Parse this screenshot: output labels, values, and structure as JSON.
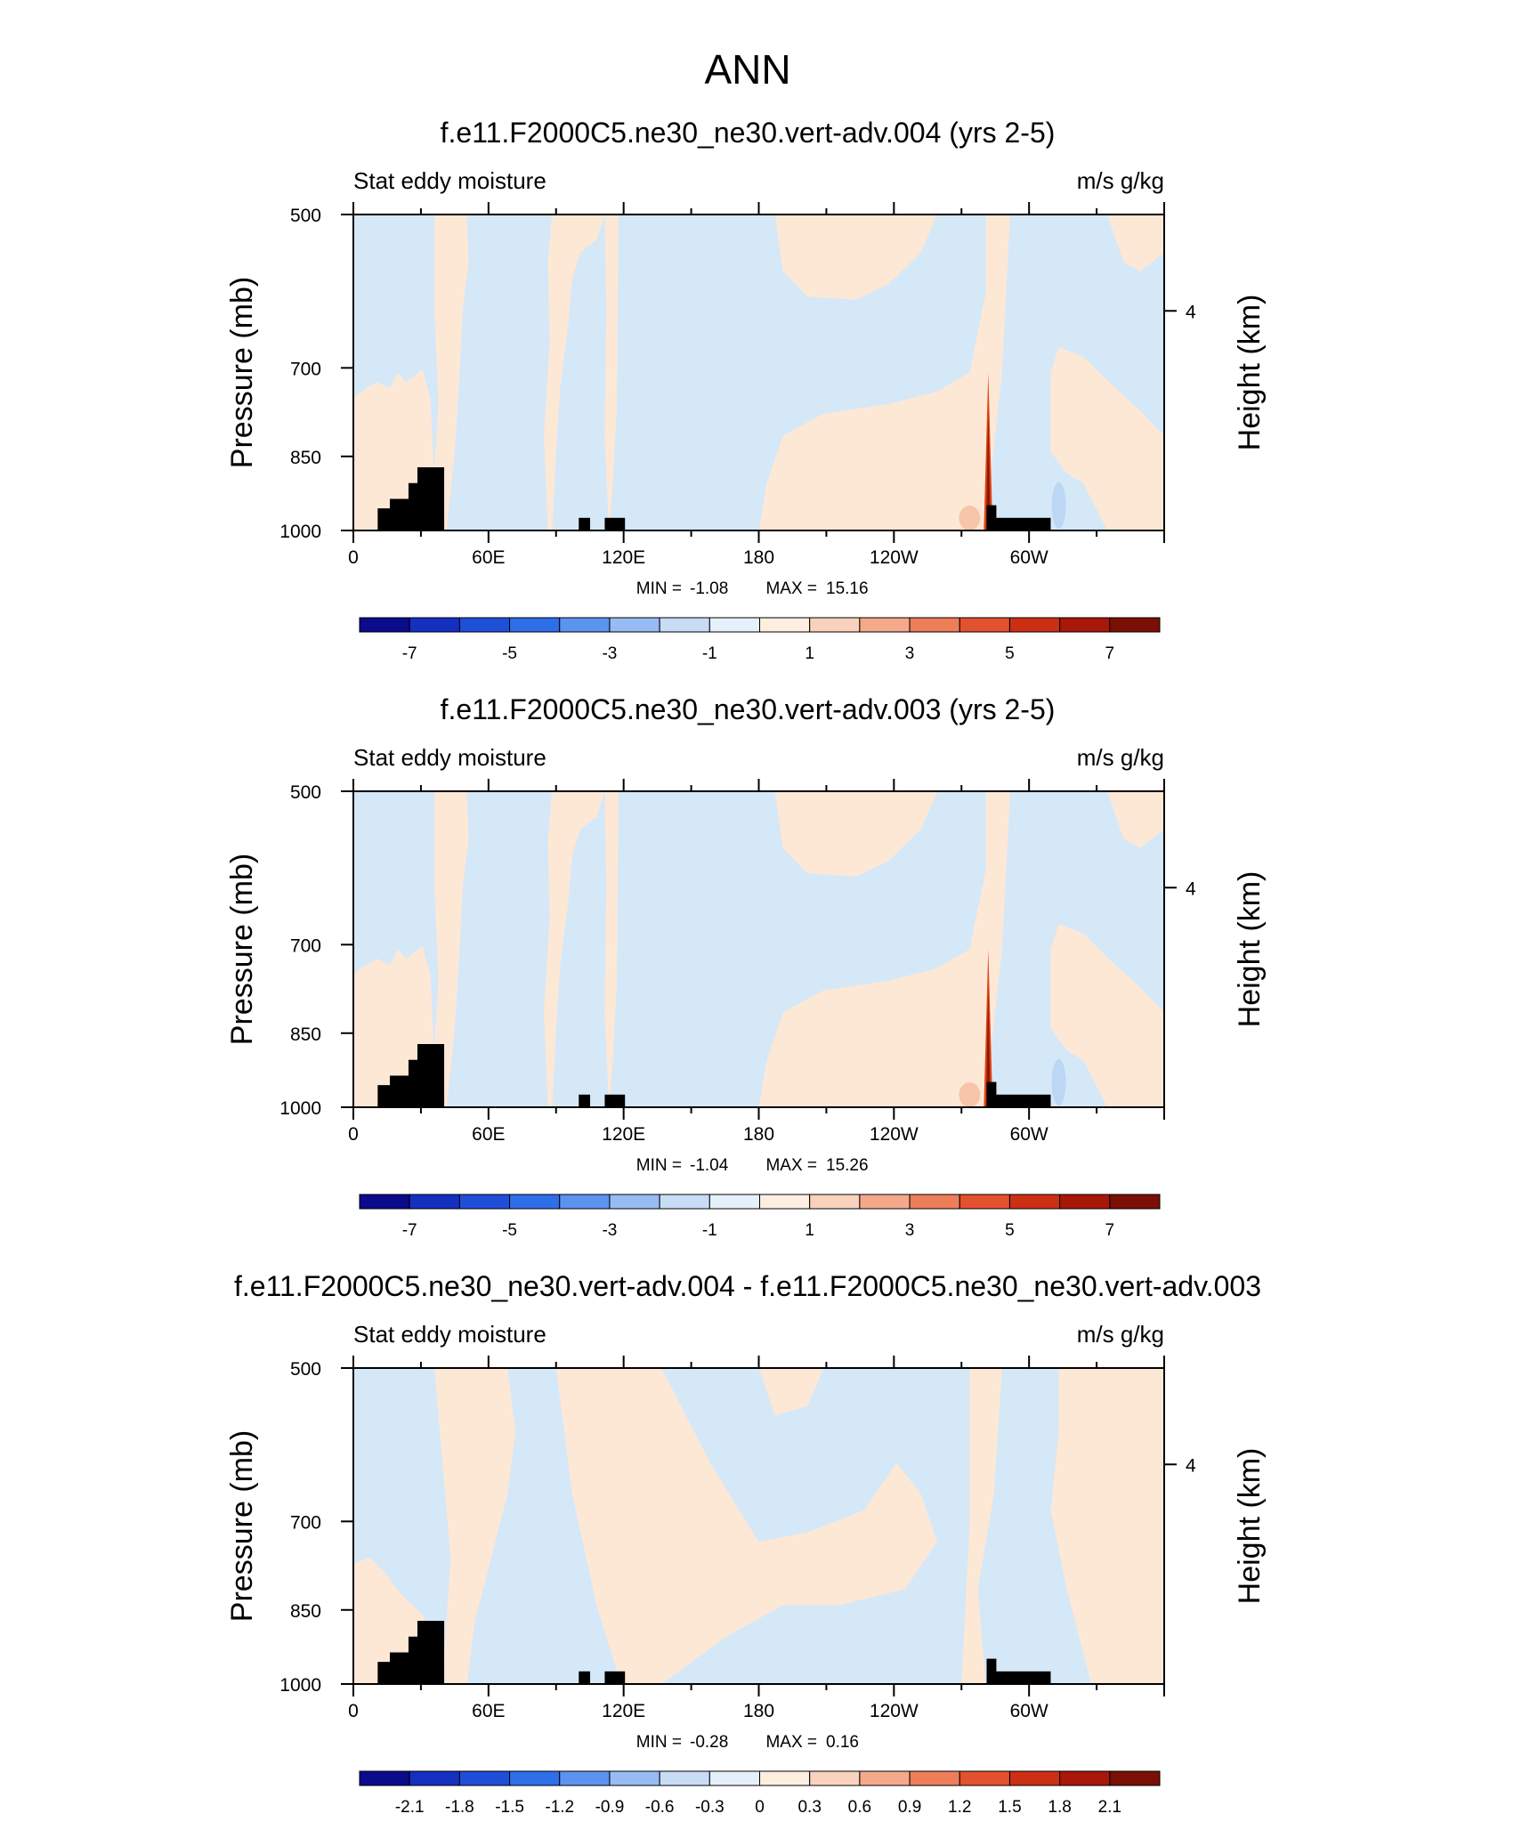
{
  "main_title": "ANN",
  "colors": {
    "blue_fill": "#d5e8f8",
    "peach_fill": "#fde8d6",
    "land": "#000000",
    "spike_dark": "#8b1a00",
    "spike_mid": "#e04418",
    "warm_mid": "#f7b696",
    "cool_mid": "#9ec3ee"
  },
  "colorbar_colors": [
    "#0b0b8c",
    "#1530c0",
    "#1f4fd9",
    "#2e6ee8",
    "#5c93ef",
    "#97bbf3",
    "#c9dcf6",
    "#e6f0fa",
    "#fdeee0",
    "#f9d2bd",
    "#f4a98b",
    "#ee7d5a",
    "#e3512f",
    "#cc2f13",
    "#a8170a",
    "#7a0f06"
  ],
  "chart_data": [
    {
      "type": "heatmap",
      "title": "f.e11.F2000C5.ne30_ne30.vert-adv.004 (yrs 2-5)",
      "left_string": "Stat eddy moisture",
      "right_string": "m/s g/kg",
      "ylabel": "Pressure (mb)",
      "y2label": "Height (km)",
      "xticks": [
        "0",
        "60E",
        "120E",
        "180",
        "120W",
        "60W"
      ],
      "yticks": [
        "500",
        "700",
        "850",
        "1000"
      ],
      "y2ticks": [
        "4"
      ],
      "ylim": [
        1000,
        500
      ],
      "xlim": [
        0,
        360
      ],
      "min_label": "MIN =",
      "min_value": "-1.08",
      "max_label": "MAX =",
      "max_value": "15.16",
      "colorbar_labels": [
        "-7",
        "-5",
        "-3",
        "-1",
        "1",
        "3",
        "5",
        "7"
      ]
    },
    {
      "type": "heatmap",
      "title": "f.e11.F2000C5.ne30_ne30.vert-adv.003 (yrs 2-5)",
      "left_string": "Stat eddy moisture",
      "right_string": "m/s g/kg",
      "ylabel": "Pressure (mb)",
      "y2label": "Height (km)",
      "xticks": [
        "0",
        "60E",
        "120E",
        "180",
        "120W",
        "60W"
      ],
      "yticks": [
        "500",
        "700",
        "850",
        "1000"
      ],
      "y2ticks": [
        "4"
      ],
      "ylim": [
        1000,
        500
      ],
      "xlim": [
        0,
        360
      ],
      "min_label": "MIN =",
      "min_value": "-1.04",
      "max_label": "MAX =",
      "max_value": "15.26",
      "colorbar_labels": [
        "-7",
        "-5",
        "-3",
        "-1",
        "1",
        "3",
        "5",
        "7"
      ]
    },
    {
      "type": "heatmap",
      "title": "f.e11.F2000C5.ne30_ne30.vert-adv.004 - f.e11.F2000C5.ne30_ne30.vert-adv.003",
      "left_string": "Stat eddy moisture",
      "right_string": "m/s g/kg",
      "ylabel": "Pressure (mb)",
      "y2label": "Height (km)",
      "xticks": [
        "0",
        "60E",
        "120E",
        "180",
        "120W",
        "60W"
      ],
      "yticks": [
        "500",
        "700",
        "850",
        "1000"
      ],
      "y2ticks": [
        "4"
      ],
      "ylim": [
        1000,
        500
      ],
      "xlim": [
        0,
        360
      ],
      "min_label": "MIN =",
      "min_value": "-0.28",
      "max_label": "MAX =",
      "max_value": "0.16",
      "colorbar_labels": [
        "-2.1",
        "-1.8",
        "-1.5",
        "-1.2",
        "-0.9",
        "-0.6",
        "-0.3",
        "0",
        "0.3",
        "0.6",
        "0.9",
        "1.2",
        "1.5",
        "1.8",
        "2.1"
      ]
    }
  ]
}
